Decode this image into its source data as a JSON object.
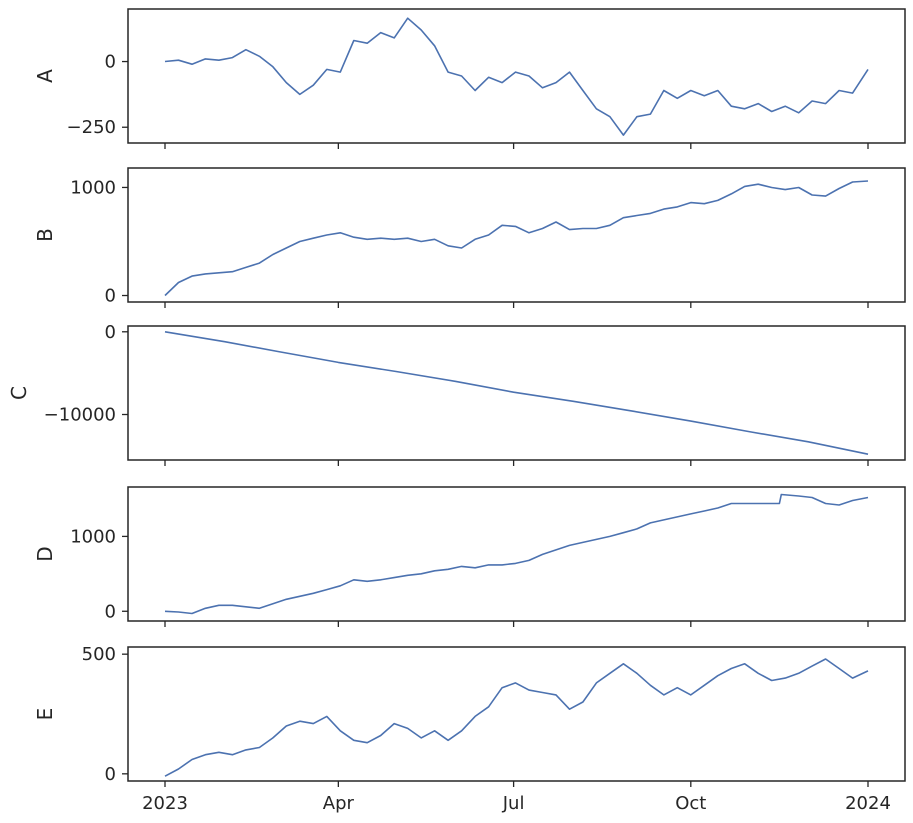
{
  "chart_data": {
    "type": "line",
    "layout": "5 stacked panels, shared x-axis",
    "grid": false,
    "x_range": [
      "2023-01-01",
      "2024-01-01"
    ],
    "x_ticks": [
      {
        "date": "2023-01-01",
        "label": "2023"
      },
      {
        "date": "2023-04-01",
        "label": "Apr"
      },
      {
        "date": "2023-07-01",
        "label": "Jul"
      },
      {
        "date": "2023-10-01",
        "label": "Oct"
      },
      {
        "date": "2024-01-01",
        "label": "2024"
      }
    ],
    "line_color": "#4c72b0",
    "panels": [
      {
        "name": "A",
        "ylabel": "A",
        "ylim": [
          -310,
          200
        ],
        "yticks": [
          {
            "value": 0,
            "label": "0"
          },
          {
            "value": -250,
            "label": "−250"
          }
        ],
        "points": [
          [
            "2023-01-01",
            0
          ],
          [
            "2023-01-08",
            5
          ],
          [
            "2023-01-15",
            -10
          ],
          [
            "2023-01-22",
            10
          ],
          [
            "2023-01-29",
            5
          ],
          [
            "2023-02-05",
            15
          ],
          [
            "2023-02-12",
            45
          ],
          [
            "2023-02-19",
            20
          ],
          [
            "2023-02-26",
            -20
          ],
          [
            "2023-03-05",
            -80
          ],
          [
            "2023-03-12",
            -125
          ],
          [
            "2023-03-19",
            -90
          ],
          [
            "2023-03-26",
            -30
          ],
          [
            "2023-04-02",
            -40
          ],
          [
            "2023-04-09",
            80
          ],
          [
            "2023-04-16",
            70
          ],
          [
            "2023-04-23",
            110
          ],
          [
            "2023-04-30",
            90
          ],
          [
            "2023-05-07",
            165
          ],
          [
            "2023-05-14",
            120
          ],
          [
            "2023-05-21",
            60
          ],
          [
            "2023-05-28",
            -40
          ],
          [
            "2023-06-04",
            -55
          ],
          [
            "2023-06-11",
            -110
          ],
          [
            "2023-06-18",
            -60
          ],
          [
            "2023-06-25",
            -80
          ],
          [
            "2023-07-02",
            -40
          ],
          [
            "2023-07-09",
            -55
          ],
          [
            "2023-07-16",
            -100
          ],
          [
            "2023-07-23",
            -80
          ],
          [
            "2023-07-30",
            -40
          ],
          [
            "2023-08-06",
            -110
          ],
          [
            "2023-08-13",
            -180
          ],
          [
            "2023-08-20",
            -210
          ],
          [
            "2023-08-27",
            -280
          ],
          [
            "2023-09-03",
            -210
          ],
          [
            "2023-09-10",
            -200
          ],
          [
            "2023-09-17",
            -110
          ],
          [
            "2023-09-24",
            -140
          ],
          [
            "2023-10-01",
            -110
          ],
          [
            "2023-10-08",
            -130
          ],
          [
            "2023-10-15",
            -110
          ],
          [
            "2023-10-22",
            -170
          ],
          [
            "2023-10-29",
            -180
          ],
          [
            "2023-11-05",
            -160
          ],
          [
            "2023-11-12",
            -190
          ],
          [
            "2023-11-19",
            -170
          ],
          [
            "2023-11-26",
            -195
          ],
          [
            "2023-12-03",
            -150
          ],
          [
            "2023-12-10",
            -160
          ],
          [
            "2023-12-17",
            -110
          ],
          [
            "2023-12-24",
            -120
          ],
          [
            "2024-01-01",
            -30
          ]
        ]
      },
      {
        "name": "B",
        "ylabel": "B",
        "ylim": [
          -60,
          1180
        ],
        "yticks": [
          {
            "value": 0,
            "label": "0"
          },
          {
            "value": 1000,
            "label": "1000"
          }
        ],
        "points": [
          [
            "2023-01-01",
            0
          ],
          [
            "2023-01-08",
            120
          ],
          [
            "2023-01-15",
            180
          ],
          [
            "2023-01-22",
            200
          ],
          [
            "2023-01-29",
            210
          ],
          [
            "2023-02-05",
            220
          ],
          [
            "2023-02-12",
            260
          ],
          [
            "2023-02-19",
            300
          ],
          [
            "2023-02-26",
            380
          ],
          [
            "2023-03-05",
            440
          ],
          [
            "2023-03-12",
            500
          ],
          [
            "2023-03-19",
            530
          ],
          [
            "2023-03-26",
            560
          ],
          [
            "2023-04-02",
            580
          ],
          [
            "2023-04-09",
            540
          ],
          [
            "2023-04-16",
            520
          ],
          [
            "2023-04-23",
            530
          ],
          [
            "2023-04-30",
            520
          ],
          [
            "2023-05-07",
            530
          ],
          [
            "2023-05-14",
            500
          ],
          [
            "2023-05-21",
            520
          ],
          [
            "2023-05-28",
            460
          ],
          [
            "2023-06-04",
            440
          ],
          [
            "2023-06-11",
            520
          ],
          [
            "2023-06-18",
            560
          ],
          [
            "2023-06-25",
            650
          ],
          [
            "2023-07-02",
            640
          ],
          [
            "2023-07-09",
            580
          ],
          [
            "2023-07-16",
            620
          ],
          [
            "2023-07-23",
            680
          ],
          [
            "2023-07-30",
            610
          ],
          [
            "2023-08-06",
            620
          ],
          [
            "2023-08-13",
            620
          ],
          [
            "2023-08-20",
            650
          ],
          [
            "2023-08-27",
            720
          ],
          [
            "2023-09-03",
            740
          ],
          [
            "2023-09-10",
            760
          ],
          [
            "2023-09-17",
            800
          ],
          [
            "2023-09-24",
            820
          ],
          [
            "2023-10-01",
            860
          ],
          [
            "2023-10-08",
            850
          ],
          [
            "2023-10-15",
            880
          ],
          [
            "2023-10-22",
            940
          ],
          [
            "2023-10-29",
            1010
          ],
          [
            "2023-11-05",
            1030
          ],
          [
            "2023-11-12",
            1000
          ],
          [
            "2023-11-19",
            980
          ],
          [
            "2023-11-26",
            1000
          ],
          [
            "2023-12-03",
            930
          ],
          [
            "2023-12-10",
            920
          ],
          [
            "2023-12-17",
            990
          ],
          [
            "2023-12-24",
            1050
          ],
          [
            "2024-01-01",
            1060
          ]
        ]
      },
      {
        "name": "C",
        "ylabel": "C",
        "ylim": [
          -15500,
          700
        ],
        "yticks": [
          {
            "value": 0,
            "label": "0"
          },
          {
            "value": -10000,
            "label": "−10000"
          }
        ],
        "points": [
          [
            "2023-01-01",
            0
          ],
          [
            "2023-02-01",
            -1200
          ],
          [
            "2023-03-01",
            -2400
          ],
          [
            "2023-04-01",
            -3700
          ],
          [
            "2023-05-01",
            -4800
          ],
          [
            "2023-06-01",
            -6000
          ],
          [
            "2023-07-01",
            -7300
          ],
          [
            "2023-08-01",
            -8400
          ],
          [
            "2023-09-01",
            -9600
          ],
          [
            "2023-10-01",
            -10800
          ],
          [
            "2023-11-01",
            -12100
          ],
          [
            "2023-12-01",
            -13300
          ],
          [
            "2024-01-01",
            -14800
          ]
        ]
      },
      {
        "name": "D",
        "ylabel": "D",
        "ylim": [
          -130,
          1660
        ],
        "yticks": [
          {
            "value": 0,
            "label": "0"
          },
          {
            "value": 1000,
            "label": "1000"
          }
        ],
        "points": [
          [
            "2023-01-01",
            0
          ],
          [
            "2023-01-08",
            -10
          ],
          [
            "2023-01-15",
            -30
          ],
          [
            "2023-01-22",
            40
          ],
          [
            "2023-01-29",
            80
          ],
          [
            "2023-02-05",
            80
          ],
          [
            "2023-02-12",
            60
          ],
          [
            "2023-02-19",
            40
          ],
          [
            "2023-02-26",
            100
          ],
          [
            "2023-03-05",
            160
          ],
          [
            "2023-03-12",
            200
          ],
          [
            "2023-03-19",
            240
          ],
          [
            "2023-03-26",
            290
          ],
          [
            "2023-04-02",
            340
          ],
          [
            "2023-04-09",
            420
          ],
          [
            "2023-04-16",
            400
          ],
          [
            "2023-04-23",
            420
          ],
          [
            "2023-04-30",
            450
          ],
          [
            "2023-05-07",
            480
          ],
          [
            "2023-05-14",
            500
          ],
          [
            "2023-05-21",
            540
          ],
          [
            "2023-05-28",
            560
          ],
          [
            "2023-06-04",
            600
          ],
          [
            "2023-06-11",
            580
          ],
          [
            "2023-06-18",
            620
          ],
          [
            "2023-06-25",
            620
          ],
          [
            "2023-07-02",
            640
          ],
          [
            "2023-07-09",
            680
          ],
          [
            "2023-07-16",
            760
          ],
          [
            "2023-07-23",
            820
          ],
          [
            "2023-07-30",
            880
          ],
          [
            "2023-08-06",
            920
          ],
          [
            "2023-08-13",
            960
          ],
          [
            "2023-08-20",
            1000
          ],
          [
            "2023-08-27",
            1050
          ],
          [
            "2023-09-03",
            1100
          ],
          [
            "2023-09-10",
            1180
          ],
          [
            "2023-09-17",
            1220
          ],
          [
            "2023-09-24",
            1260
          ],
          [
            "2023-10-01",
            1300
          ],
          [
            "2023-10-08",
            1340
          ],
          [
            "2023-10-15",
            1380
          ],
          [
            "2023-10-22",
            1440
          ],
          [
            "2023-10-29",
            1440
          ],
          [
            "2023-11-05",
            1440
          ],
          [
            "2023-11-12",
            1440
          ],
          [
            "2023-11-16",
            1440
          ],
          [
            "2023-11-17",
            1560
          ],
          [
            "2023-11-26",
            1540
          ],
          [
            "2023-12-03",
            1520
          ],
          [
            "2023-12-10",
            1440
          ],
          [
            "2023-12-17",
            1420
          ],
          [
            "2023-12-24",
            1480
          ],
          [
            "2024-01-01",
            1520
          ]
        ]
      },
      {
        "name": "E",
        "ylabel": "E",
        "ylim": [
          -30,
          530
        ],
        "yticks": [
          {
            "value": 0,
            "label": "0"
          },
          {
            "value": 500,
            "label": "500"
          }
        ],
        "points": [
          [
            "2023-01-01",
            -10
          ],
          [
            "2023-01-08",
            20
          ],
          [
            "2023-01-15",
            60
          ],
          [
            "2023-01-22",
            80
          ],
          [
            "2023-01-29",
            90
          ],
          [
            "2023-02-05",
            80
          ],
          [
            "2023-02-12",
            100
          ],
          [
            "2023-02-19",
            110
          ],
          [
            "2023-02-26",
            150
          ],
          [
            "2023-03-05",
            200
          ],
          [
            "2023-03-12",
            220
          ],
          [
            "2023-03-19",
            210
          ],
          [
            "2023-03-26",
            240
          ],
          [
            "2023-04-02",
            180
          ],
          [
            "2023-04-09",
            140
          ],
          [
            "2023-04-16",
            130
          ],
          [
            "2023-04-23",
            160
          ],
          [
            "2023-04-30",
            210
          ],
          [
            "2023-05-07",
            190
          ],
          [
            "2023-05-14",
            150
          ],
          [
            "2023-05-21",
            180
          ],
          [
            "2023-05-28",
            140
          ],
          [
            "2023-06-04",
            180
          ],
          [
            "2023-06-11",
            240
          ],
          [
            "2023-06-18",
            280
          ],
          [
            "2023-06-25",
            360
          ],
          [
            "2023-07-02",
            380
          ],
          [
            "2023-07-09",
            350
          ],
          [
            "2023-07-16",
            340
          ],
          [
            "2023-07-23",
            330
          ],
          [
            "2023-07-30",
            270
          ],
          [
            "2023-08-06",
            300
          ],
          [
            "2023-08-13",
            380
          ],
          [
            "2023-08-20",
            420
          ],
          [
            "2023-08-27",
            460
          ],
          [
            "2023-09-03",
            420
          ],
          [
            "2023-09-10",
            370
          ],
          [
            "2023-09-17",
            330
          ],
          [
            "2023-09-24",
            360
          ],
          [
            "2023-10-01",
            330
          ],
          [
            "2023-10-08",
            370
          ],
          [
            "2023-10-15",
            410
          ],
          [
            "2023-10-22",
            440
          ],
          [
            "2023-10-29",
            460
          ],
          [
            "2023-11-05",
            420
          ],
          [
            "2023-11-12",
            390
          ],
          [
            "2023-11-19",
            400
          ],
          [
            "2023-11-26",
            420
          ],
          [
            "2023-12-03",
            450
          ],
          [
            "2023-12-10",
            480
          ],
          [
            "2023-12-17",
            440
          ],
          [
            "2023-12-24",
            400
          ],
          [
            "2024-01-01",
            430
          ]
        ]
      }
    ]
  }
}
